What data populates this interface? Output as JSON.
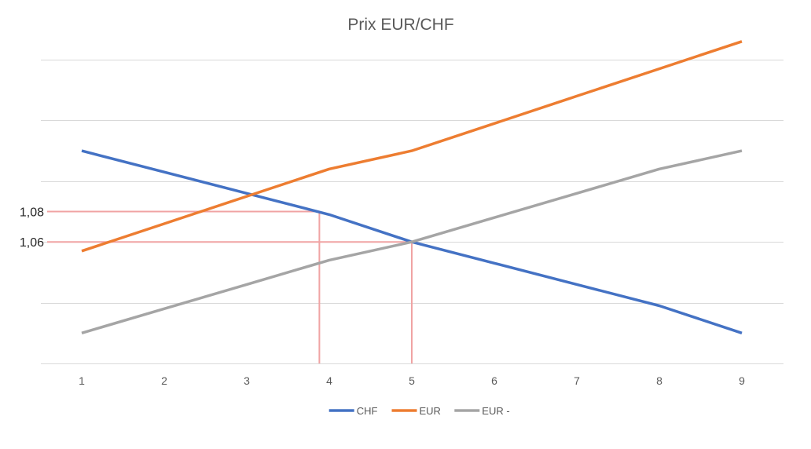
{
  "chart_data": {
    "type": "line",
    "title": "Prix EUR/CHF",
    "categories": [
      "1",
      "2",
      "3",
      "4",
      "5",
      "6",
      "7",
      "8",
      "9"
    ],
    "series": [
      {
        "name": "CHF",
        "color": "#4472C4",
        "values": [
          1.12,
          1.106,
          1.092,
          1.078,
          1.06,
          1.046,
          1.032,
          1.018,
          1.0
        ]
      },
      {
        "name": "EUR",
        "color": "#ED7D31",
        "values": [
          1.054,
          1.072,
          1.09,
          1.108,
          1.12,
          1.138,
          1.156,
          1.174,
          1.192
        ]
      },
      {
        "name": "EUR -",
        "color": "#A5A5A5",
        "values": [
          1.0,
          1.016,
          1.032,
          1.048,
          1.06,
          1.076,
          1.092,
          1.108,
          1.12
        ]
      }
    ],
    "ylim": [
      0.98,
      1.18
    ],
    "y_tick_labels": [
      {
        "label": "1,08",
        "value": 1.08
      },
      {
        "label": "1,06",
        "value": 1.06
      }
    ],
    "grid": true,
    "legend_position": "bottom",
    "reference_lines": [
      {
        "x": 3.88,
        "y": 1.08,
        "color": "#F0A3A3"
      },
      {
        "x": 5.0,
        "y": 1.06,
        "color": "#F0A3A3"
      }
    ],
    "grid_color": "#D9D9D9",
    "axis_color": "#D9D9D9",
    "text_color": "#595959"
  }
}
